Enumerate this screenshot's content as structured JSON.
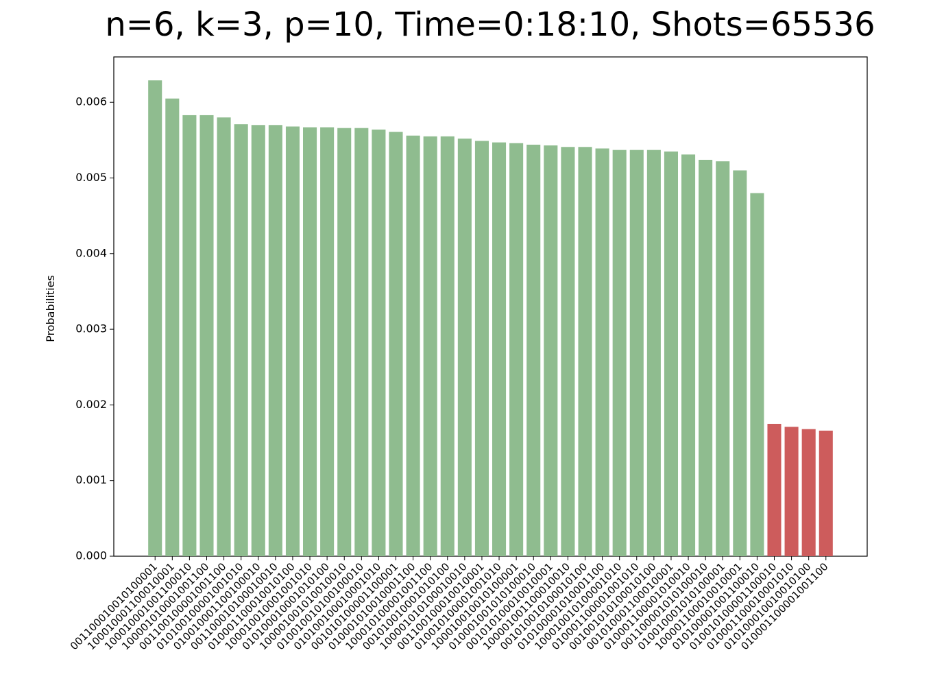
{
  "chart_data": {
    "type": "bar",
    "title": "n=6, k=3, p=10, Time=0:18:10, Shots=65536",
    "ylabel": "Probabilities",
    "categories": [
      "001100010010100001",
      "100010001100010001",
      "100010001001100010",
      "100001010001001100",
      "001100100001001100",
      "010100100001001010",
      "010010001100100010",
      "001100010100010010",
      "010001100010010100",
      "100010010001001010",
      "010100010001010100",
      "100001001010010010",
      "010010010100100010",
      "010100100010001010",
      "001010100001100001",
      "010001010010001100",
      "100010100001001100",
      "001010010001010100",
      "100001010100010010",
      "001100100010010001",
      "010010100001001010",
      "100010010010100001",
      "010001001010100010",
      "001010100010010001",
      "100001001100010010",
      "001010010100010100",
      "010100001010001100",
      "100010010100001010",
      "010001100001001010",
      "001001010100010100",
      "001010001100010001",
      "010001100001010010",
      "001100001010100010",
      "010010001010100001",
      "100001100010010001",
      "010100001001100010",
      "010010100001100010",
      "010001100010001010",
      "010100010010010100",
      "010001100001001100"
    ],
    "values": [
      0.00629,
      0.00605,
      0.00583,
      0.00583,
      0.0058,
      0.00571,
      0.0057,
      0.0057,
      0.00568,
      0.00567,
      0.00567,
      0.00566,
      0.00566,
      0.00564,
      0.00561,
      0.00556,
      0.00555,
      0.00555,
      0.00552,
      0.00549,
      0.00547,
      0.00546,
      0.00544,
      0.00543,
      0.00541,
      0.00541,
      0.00539,
      0.00537,
      0.00537,
      0.00537,
      0.00535,
      0.00531,
      0.00524,
      0.00522,
      0.0051,
      0.0048,
      0.00175,
      0.00171,
      0.00168,
      0.00166
    ],
    "colors": [
      "#8fbc8f",
      "#8fbc8f",
      "#8fbc8f",
      "#8fbc8f",
      "#8fbc8f",
      "#8fbc8f",
      "#8fbc8f",
      "#8fbc8f",
      "#8fbc8f",
      "#8fbc8f",
      "#8fbc8f",
      "#8fbc8f",
      "#8fbc8f",
      "#8fbc8f",
      "#8fbc8f",
      "#8fbc8f",
      "#8fbc8f",
      "#8fbc8f",
      "#8fbc8f",
      "#8fbc8f",
      "#8fbc8f",
      "#8fbc8f",
      "#8fbc8f",
      "#8fbc8f",
      "#8fbc8f",
      "#8fbc8f",
      "#8fbc8f",
      "#8fbc8f",
      "#8fbc8f",
      "#8fbc8f",
      "#8fbc8f",
      "#8fbc8f",
      "#8fbc8f",
      "#8fbc8f",
      "#8fbc8f",
      "#8fbc8f",
      "#cd5c5c",
      "#cd5c5c",
      "#cd5c5c",
      "#cd5c5c"
    ],
    "ylim": [
      0,
      0.0066
    ],
    "yticks": [
      {
        "value": 0,
        "label": "0.000"
      },
      {
        "value": 0.001,
        "label": "0.001"
      },
      {
        "value": 0.002,
        "label": "0.002"
      },
      {
        "value": 0.003,
        "label": "0.003"
      },
      {
        "value": 0.004,
        "label": "0.004"
      },
      {
        "value": 0.005,
        "label": "0.005"
      },
      {
        "value": 0.006,
        "label": "0.006"
      }
    ],
    "grid": false
  }
}
